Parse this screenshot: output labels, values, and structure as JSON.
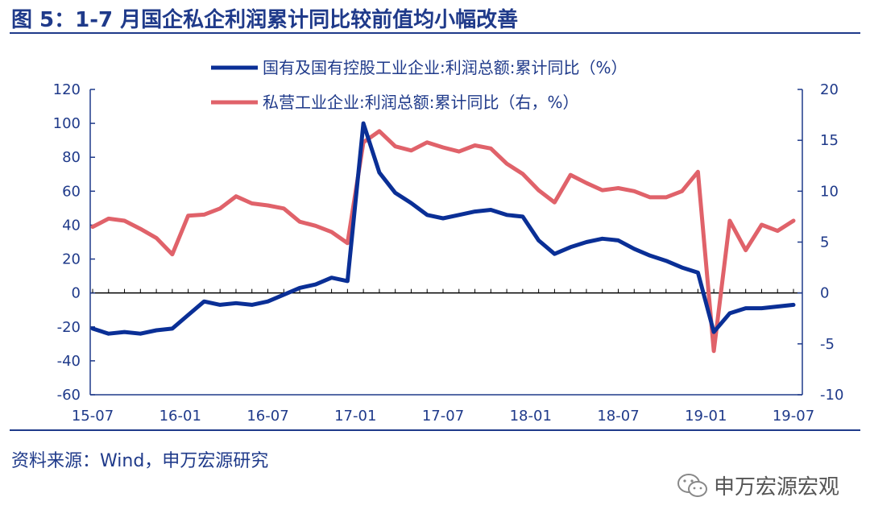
{
  "header": {
    "title": "图 5：1-7 月国企私企利润累计同比较前值均小幅改善"
  },
  "footer": {
    "source": "资料来源：Wind，申万宏源研究",
    "watermark": "申万宏源宏观",
    "watermark_icon": "wechat-icon"
  },
  "colors": {
    "accent": "#1f3a8a",
    "series_soe": "#0a2f96",
    "series_private": "#e0626a"
  },
  "chart_data": {
    "type": "line",
    "xlabel": "",
    "ylabel": "",
    "y2label": "",
    "ylim": [
      -60,
      120
    ],
    "y_ticks": [
      120,
      100,
      80,
      60,
      40,
      20,
      0,
      -20,
      -40,
      -60
    ],
    "y2lim": [
      -10,
      20
    ],
    "y2_ticks": [
      20,
      15,
      10,
      5,
      0,
      -5,
      -10
    ],
    "x_tick_labels": [
      "15-07",
      "16-01",
      "16-07",
      "17-01",
      "17-07",
      "18-01",
      "18-07",
      "19-01",
      "19-07"
    ],
    "legend": "top-center",
    "grid": false,
    "x": [
      "15-07",
      "15-08",
      "15-09",
      "15-10",
      "15-11",
      "15-12",
      "16-02",
      "16-03",
      "16-04",
      "16-05",
      "16-06",
      "16-07",
      "16-08",
      "16-09",
      "16-10",
      "16-11",
      "16-12",
      "17-02",
      "17-03",
      "17-04",
      "17-05",
      "17-06",
      "17-07",
      "17-08",
      "17-09",
      "17-10",
      "17-11",
      "17-12",
      "18-02",
      "18-03",
      "18-04",
      "18-05",
      "18-06",
      "18-07",
      "18-08",
      "18-09",
      "18-10",
      "18-11",
      "18-12",
      "19-02",
      "19-03",
      "19-04",
      "19-05",
      "19-06",
      "19-07"
    ],
    "series": [
      {
        "name": "国有及国有控股工业企业:利润总额:累计同比（%）",
        "axis": "left",
        "values": [
          -21,
          -24,
          -23,
          -24,
          -22,
          -21,
          -13,
          -5,
          -7,
          -6,
          -7,
          -5,
          -1,
          3,
          5,
          9,
          7,
          100,
          71,
          59,
          53,
          46,
          44,
          46,
          48,
          49,
          46,
          45,
          31,
          23,
          27,
          30,
          32,
          31,
          26,
          22,
          19,
          15,
          12,
          -23,
          -12,
          -9,
          -9,
          -8,
          -7
        ]
      },
      {
        "name": "私营工业企业:利润总额:累计同比（右，%）",
        "axis": "right",
        "values": [
          6.5,
          7.3,
          7.1,
          6.3,
          5.4,
          3.8,
          7.6,
          7.7,
          8.3,
          9.5,
          8.8,
          8.6,
          8.3,
          7.0,
          6.6,
          6.0,
          4.9,
          14.8,
          15.9,
          14.4,
          14.0,
          14.8,
          14.3,
          13.9,
          14.5,
          14.2,
          12.7,
          11.7,
          10.1,
          8.9,
          11.6,
          10.8,
          10.1,
          10.3,
          10.0,
          9.4,
          9.4,
          10.0,
          11.9,
          -5.7,
          7.1,
          4.2,
          6.7,
          6.1,
          7.1
        ]
      }
    ]
  }
}
